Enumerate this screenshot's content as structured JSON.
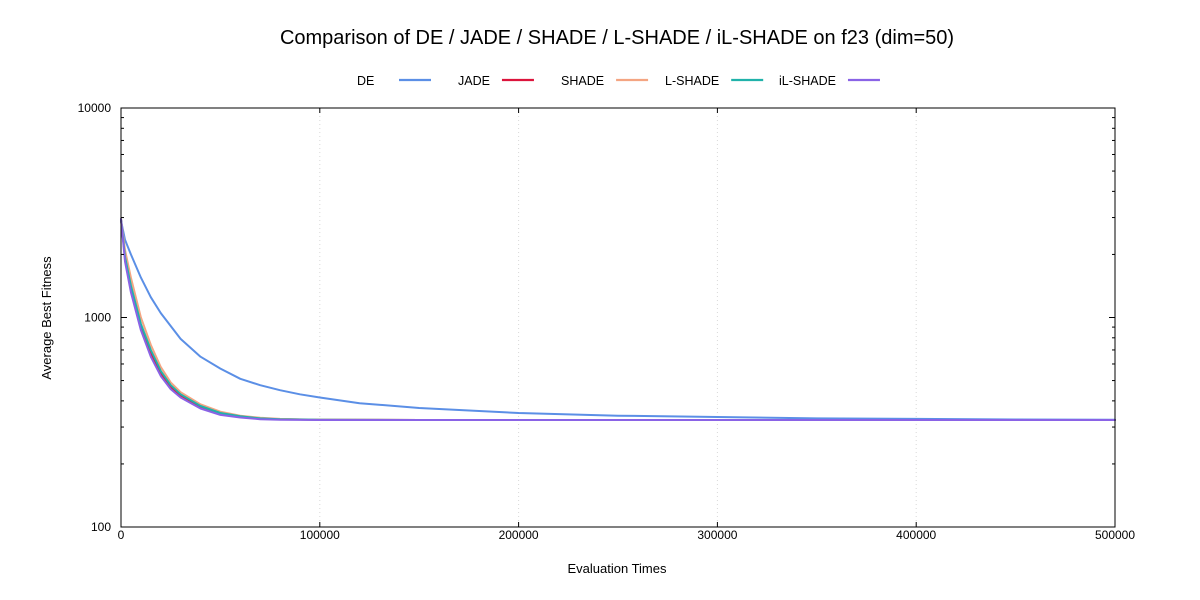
{
  "chart_data": {
    "type": "line",
    "title": "Comparison of DE / JADE / SHADE / L-SHADE / iL-SHADE on f23 (dim=50)",
    "xlabel": "Evaluation Times",
    "ylabel": "Average Best Fitness",
    "xlim": [
      0,
      500000
    ],
    "ylim": [
      100,
      10000
    ],
    "yscale": "log",
    "grid": true,
    "legend_position": "top",
    "x_ticks": [
      0,
      100000,
      200000,
      300000,
      400000,
      500000
    ],
    "x_tick_labels": [
      "0",
      "100000",
      "200000",
      "300000",
      "400000",
      "500000"
    ],
    "y_ticks": [
      100,
      1000,
      10000
    ],
    "y_tick_labels": [
      "100",
      "1000",
      "10000"
    ],
    "series": [
      {
        "name": "DE",
        "color": "#5b8fe6",
        "x": [
          0,
          2000,
          5000,
          10000,
          15000,
          20000,
          30000,
          40000,
          50000,
          60000,
          70000,
          80000,
          90000,
          100000,
          120000,
          150000,
          200000,
          250000,
          300000,
          350000,
          400000,
          450000,
          500000
        ],
        "y": [
          2900,
          2350,
          2000,
          1550,
          1250,
          1050,
          790,
          650,
          570,
          510,
          475,
          450,
          430,
          415,
          390,
          370,
          350,
          340,
          335,
          330,
          328,
          326,
          325
        ]
      },
      {
        "name": "JADE",
        "color": "#dc143c",
        "x": [
          0,
          2000,
          5000,
          10000,
          15000,
          20000,
          25000,
          30000,
          40000,
          50000,
          60000,
          70000,
          80000,
          100000,
          150000,
          200000,
          300000,
          400000,
          500000
        ],
        "y": [
          2950,
          1950,
          1400,
          900,
          680,
          540,
          465,
          425,
          375,
          350,
          338,
          330,
          327,
          325,
          324,
          324,
          324,
          324,
          324
        ]
      },
      {
        "name": "SHADE",
        "color": "#f4a582",
        "x": [
          0,
          2000,
          5000,
          10000,
          15000,
          20000,
          25000,
          30000,
          40000,
          50000,
          60000,
          70000,
          80000,
          100000,
          150000,
          200000,
          300000,
          400000,
          500000
        ],
        "y": [
          2950,
          2100,
          1550,
          1000,
          740,
          580,
          490,
          440,
          385,
          355,
          340,
          332,
          328,
          325,
          324,
          324,
          324,
          324,
          324
        ]
      },
      {
        "name": "L-SHADE",
        "color": "#20b2aa",
        "x": [
          0,
          2000,
          5000,
          10000,
          15000,
          20000,
          25000,
          30000,
          40000,
          50000,
          60000,
          70000,
          80000,
          100000,
          150000,
          200000,
          300000,
          400000,
          500000
        ],
        "y": [
          2950,
          1950,
          1420,
          930,
          700,
          555,
          475,
          430,
          378,
          350,
          338,
          330,
          327,
          325,
          324,
          324,
          324,
          324,
          324
        ]
      },
      {
        "name": "iL-SHADE",
        "color": "#8a63e6",
        "x": [
          0,
          2000,
          5000,
          10000,
          15000,
          20000,
          25000,
          30000,
          40000,
          50000,
          60000,
          70000,
          80000,
          100000,
          150000,
          200000,
          300000,
          400000,
          500000
        ],
        "y": [
          2950,
          1850,
          1320,
          870,
          650,
          525,
          455,
          415,
          368,
          343,
          333,
          327,
          325,
          324,
          324,
          324,
          324,
          324,
          324
        ]
      }
    ]
  }
}
